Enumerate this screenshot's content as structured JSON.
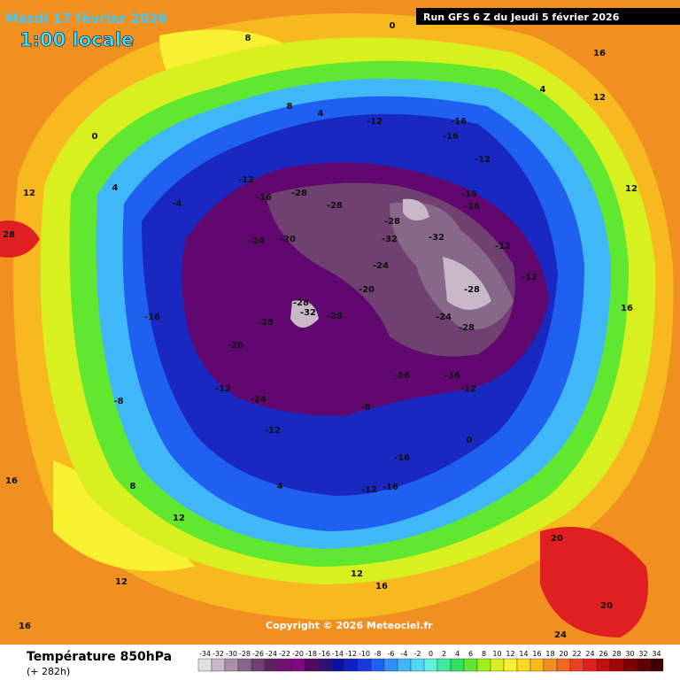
{
  "header": {
    "date": "Mardi 17 février 2026",
    "time": "1:00 locale",
    "run": "Run GFS 6 Z du Jeudi 5 février 2026"
  },
  "map": {
    "contour_labels": [
      -28,
      -28,
      -32,
      -32,
      -28,
      -24,
      -28,
      -24,
      -28,
      -20,
      -20,
      -28,
      -32,
      -28,
      -24,
      -20,
      -16,
      -12,
      -12,
      -16,
      -16,
      -12,
      -16,
      -16,
      -12,
      -12,
      -16,
      -12,
      -16,
      -8,
      -16,
      -16,
      -12,
      -12,
      -24,
      -12,
      -20,
      -16,
      -8,
      0,
      8,
      4,
      12,
      16,
      12,
      16,
      28,
      12,
      16,
      8,
      12,
      4,
      12,
      16,
      20,
      24,
      20,
      16,
      12,
      0,
      4,
      -4,
      0,
      4,
      8
    ]
  },
  "footer": {
    "copyright": "Copyright © 2026 Meteociel.fr",
    "legend_title": "Température 850hPa",
    "lead_time": "(+ 282h)"
  },
  "color_scale": {
    "values": [
      -34,
      -32,
      -30,
      -28,
      -26,
      -24,
      -22,
      -20,
      -18,
      -16,
      -14,
      -12,
      -10,
      -8,
      -6,
      -4,
      -2,
      0,
      2,
      4,
      6,
      8,
      10,
      12,
      14,
      16,
      18,
      20,
      22,
      24,
      26,
      28,
      30,
      32,
      34
    ],
    "colors": [
      "#e0e0e0",
      "#c8b8c8",
      "#a890a8",
      "#886888",
      "#704070",
      "#602060",
      "#701070",
      "#800880",
      "#500860",
      "#301070",
      "#1010a0",
      "#1020c0",
      "#1838e0",
      "#2060f0",
      "#3090f8",
      "#40b8f8",
      "#50d8f8",
      "#60f0e0",
      "#40e8a0",
      "#30e060",
      "#60e830",
      "#a0f020",
      "#d8f020",
      "#f8f030",
      "#f8d820",
      "#f8b820",
      "#f09020",
      "#f06820",
      "#e84020",
      "#e02020",
      "#c01010",
      "#a00808",
      "#800000",
      "#600000",
      "#400000"
    ]
  }
}
